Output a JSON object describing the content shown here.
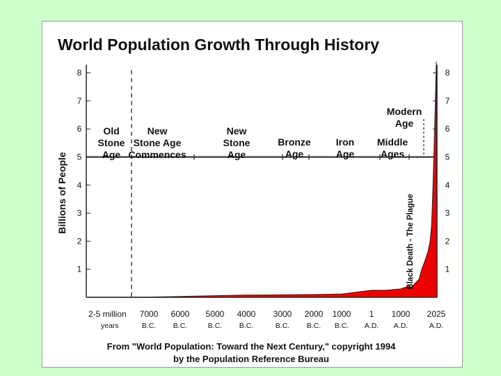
{
  "slide": {
    "background": "#ccffcc",
    "source_line1": "From \"World Population: Toward the Next Century,\" copyright 1994",
    "source_line2": "by the Population Reference Bureau"
  },
  "chart_data": {
    "type": "area",
    "title": "World Population Growth Through History",
    "ylabel": "Billions of People",
    "ylim": [
      0,
      8.5
    ],
    "y_ticks": [
      "1",
      "2",
      "3",
      "4",
      "5",
      "6",
      "7",
      "8"
    ],
    "fill_color": "#ee0000",
    "x_ticks": [
      {
        "label": "2-5 million",
        "sub": "years"
      },
      {
        "label": "7000",
        "sub": "B.C."
      },
      {
        "label": "6000",
        "sub": "B.C."
      },
      {
        "label": "5000",
        "sub": "B.C."
      },
      {
        "label": "4000",
        "sub": "B.C."
      },
      {
        "label": "3000",
        "sub": "B.C."
      },
      {
        "label": "2000",
        "sub": "B.C."
      },
      {
        "label": "1000",
        "sub": "B.C."
      },
      {
        "label": "1",
        "sub": "A.D."
      },
      {
        "label": "1000",
        "sub": "A.D."
      },
      {
        "label": "2025",
        "sub": "A.D."
      }
    ],
    "eras": [
      {
        "lines": [
          "Old",
          "Stone",
          "Age"
        ]
      },
      {
        "lines": [
          "New",
          "Stone Age",
          "Commences"
        ]
      },
      {
        "lines": [
          "New",
          "Stone",
          "Age"
        ]
      },
      {
        "lines": [
          "Bronze",
          "Age"
        ]
      },
      {
        "lines": [
          "Iron",
          "Age"
        ]
      },
      {
        "lines": [
          "Middle",
          "Ages"
        ]
      },
      {
        "lines": [
          "Modern",
          "Age"
        ]
      }
    ],
    "annotation": "Black Death - The Plague",
    "series": [
      {
        "values": [
          {
            "x": -9000,
            "y": 0.004
          },
          {
            "x": -8000,
            "y": 0.005
          },
          {
            "x": -7000,
            "y": 0.01
          },
          {
            "x": -6000,
            "y": 0.03
          },
          {
            "x": -5000,
            "y": 0.06
          },
          {
            "x": -4000,
            "y": 0.08
          },
          {
            "x": -3000,
            "y": 0.09
          },
          {
            "x": -2000,
            "y": 0.1
          },
          {
            "x": -1000,
            "y": 0.12
          },
          {
            "x": 1,
            "y": 0.25
          },
          {
            "x": 500,
            "y": 0.25
          },
          {
            "x": 1000,
            "y": 0.3
          },
          {
            "x": 1300,
            "y": 0.4
          },
          {
            "x": 1400,
            "y": 0.36
          },
          {
            "x": 1500,
            "y": 0.45
          },
          {
            "x": 1600,
            "y": 0.55
          },
          {
            "x": 1700,
            "y": 0.65
          },
          {
            "x": 1800,
            "y": 1.0
          },
          {
            "x": 1850,
            "y": 1.3
          },
          {
            "x": 1900,
            "y": 1.65
          },
          {
            "x": 1930,
            "y": 2.0
          },
          {
            "x": 1950,
            "y": 2.5
          },
          {
            "x": 1960,
            "y": 3.0
          },
          {
            "x": 1975,
            "y": 4.0
          },
          {
            "x": 1987,
            "y": 5.0
          },
          {
            "x": 1999,
            "y": 6.0
          },
          {
            "x": 2011,
            "y": 7.0
          },
          {
            "x": 2025,
            "y": 8.4
          }
        ]
      }
    ]
  }
}
